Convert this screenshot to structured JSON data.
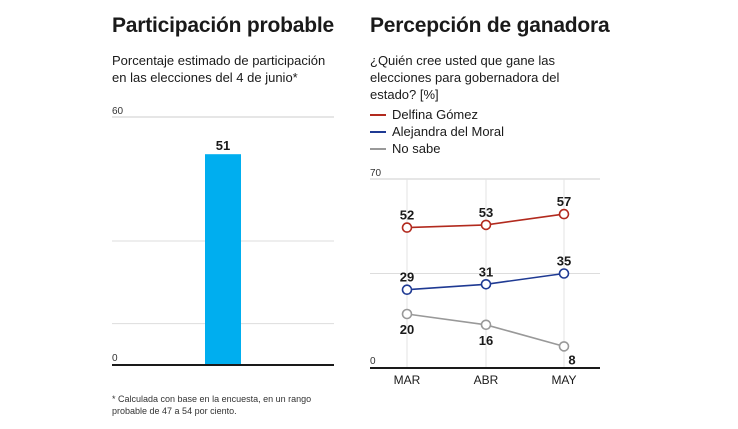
{
  "chart_data": [
    {
      "type": "bar",
      "title": "Participación probable",
      "subtitle": "Porcentaje estimado de participación\nen las elecciones del 4 de junio*",
      "categories": [
        ""
      ],
      "values": [
        51
      ],
      "ylim": [
        0,
        60
      ],
      "y_ticks": [
        "60",
        "0"
      ],
      "grid": true,
      "bar_color": "#00AEEF",
      "footnote": "* Calculada con base en la encuesta, en un rango\nprobable de 47 a 54 por ciento."
    },
    {
      "type": "line",
      "title": "Percepción de ganadora",
      "subtitle": "¿Quién cree usted que gane las\nelecciones para gobernadora del\nestado?  [%]",
      "categories": [
        "MAR",
        "ABR",
        "MAY"
      ],
      "ylim": [
        0,
        70
      ],
      "y_ticks": [
        "70",
        "0"
      ],
      "grid": true,
      "legend_position": "top-left",
      "series": [
        {
          "name": "Delfina Gómez",
          "values": [
            52,
            53,
            57
          ],
          "color": "#B22A1E"
        },
        {
          "name": "Alejandra del Moral",
          "values": [
            29,
            31,
            35
          ],
          "color": "#1F3A93"
        },
        {
          "name": "No sabe",
          "values": [
            20,
            16,
            8
          ],
          "color": "#999999"
        }
      ]
    }
  ]
}
